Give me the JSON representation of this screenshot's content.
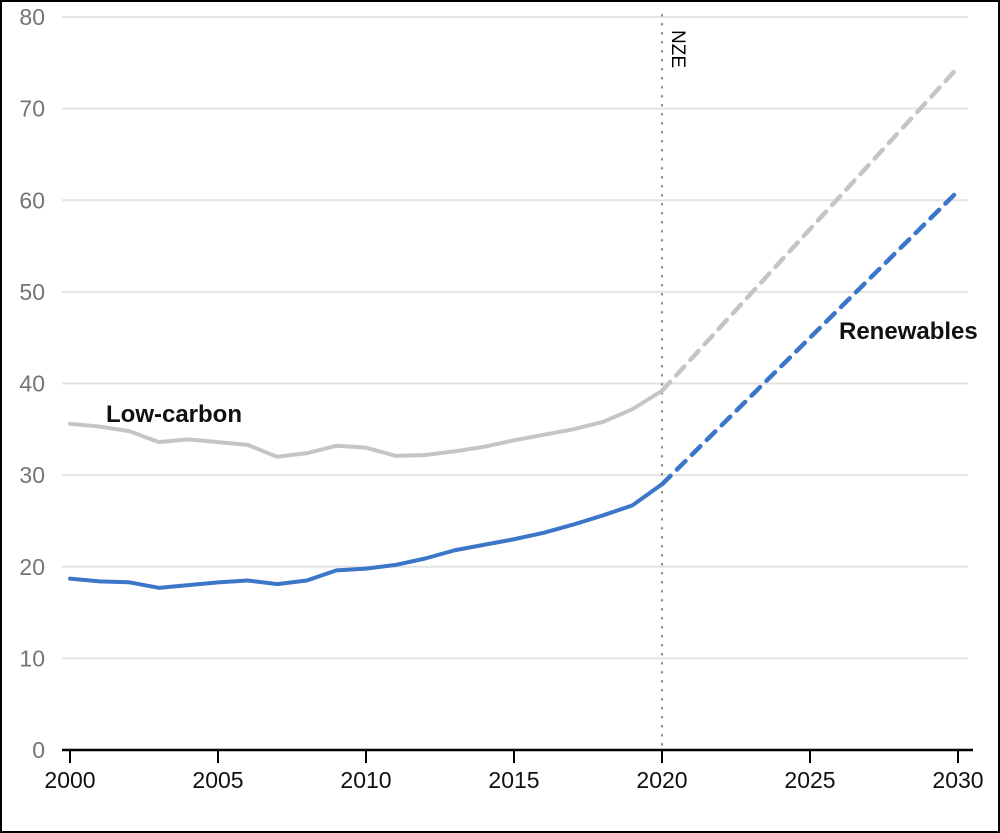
{
  "chart_data": {
    "type": "line",
    "title": "",
    "xlabel": "",
    "ylabel": "",
    "xlim": [
      2000,
      2030
    ],
    "ylim": [
      0,
      80
    ],
    "x_ticks": [
      2000,
      2005,
      2010,
      2015,
      2020,
      2025,
      2030
    ],
    "y_ticks": [
      0,
      10,
      20,
      30,
      40,
      50,
      60,
      70,
      80
    ],
    "grid": "horizontal",
    "legend_position": "none",
    "reference_line": {
      "x": 2020,
      "label": "NZE",
      "style": "dotted"
    },
    "series": [
      {
        "name": "Low-carbon (historical)",
        "color": "#c5c5c5",
        "style": "solid",
        "x": [
          2000,
          2001,
          2002,
          2003,
          2004,
          2005,
          2006,
          2007,
          2008,
          2009,
          2010,
          2011,
          2012,
          2013,
          2014,
          2015,
          2016,
          2017,
          2018,
          2019,
          2020
        ],
        "values": [
          35.6,
          35.3,
          34.8,
          33.6,
          33.9,
          33.6,
          33.3,
          32.0,
          32.4,
          33.2,
          33.0,
          32.1,
          32.2,
          32.6,
          33.1,
          33.8,
          34.4,
          35.0,
          35.8,
          37.2,
          39.2
        ]
      },
      {
        "name": "Low-carbon (NZE projection)",
        "color": "#c5c5c5",
        "style": "dashed",
        "x": [
          2020,
          2030
        ],
        "values": [
          39.2,
          74.5
        ]
      },
      {
        "name": "Renewables (historical)",
        "color": "#3b76c9",
        "style": "solid",
        "x": [
          2000,
          2001,
          2002,
          2003,
          2004,
          2005,
          2006,
          2007,
          2008,
          2009,
          2010,
          2011,
          2012,
          2013,
          2014,
          2015,
          2016,
          2017,
          2018,
          2019,
          2020
        ],
        "values": [
          18.7,
          18.4,
          18.3,
          17.7,
          18.0,
          18.3,
          18.5,
          18.1,
          18.5,
          19.6,
          19.8,
          20.2,
          20.9,
          21.8,
          22.4,
          23.0,
          23.7,
          24.6,
          25.6,
          26.7,
          29.0
        ]
      },
      {
        "name": "Renewables (NZE projection)",
        "color": "#3b76c9",
        "style": "dashed",
        "x": [
          2020,
          2030
        ],
        "values": [
          29.0,
          61.0
        ]
      }
    ],
    "annotations": [
      {
        "text": "Low-carbon"
      },
      {
        "text": "Renewables"
      },
      {
        "text": "NZE"
      }
    ]
  },
  "colors": {
    "gray_line": "#c5c5c5",
    "blue_line": "#3b76c9",
    "gridline": "#e3e3e3",
    "dotted_reference": "#8c8c8c",
    "y_tick_label": "#757575",
    "x_tick_label": "#111111",
    "axis": "#000000"
  }
}
